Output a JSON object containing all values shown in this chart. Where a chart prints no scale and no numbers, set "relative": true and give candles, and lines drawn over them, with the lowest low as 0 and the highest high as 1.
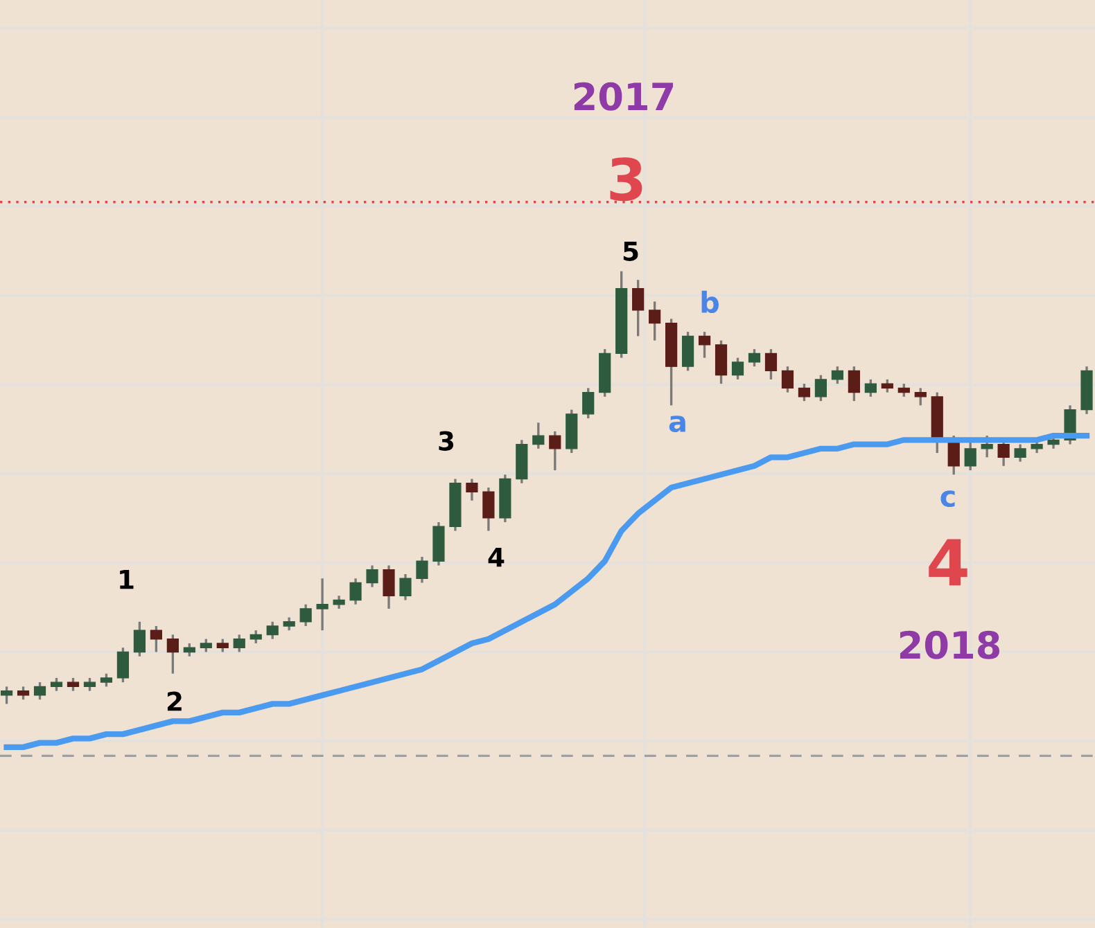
{
  "chart_data": {
    "type": "candlestick",
    "relative": true,
    "grid": true,
    "categories": [
      null,
      null,
      null,
      null,
      null,
      null,
      null,
      null,
      null,
      null,
      null,
      null,
      null,
      null,
      null,
      null,
      null,
      null,
      null,
      null,
      null,
      null,
      null,
      null,
      null,
      null,
      null,
      null,
      null,
      null,
      null,
      null,
      null,
      null,
      null,
      null,
      null,
      null,
      null,
      null,
      null,
      null,
      null,
      null,
      null,
      null,
      null,
      null,
      null,
      null,
      null,
      null,
      null,
      null,
      null,
      null,
      null,
      null,
      null,
      null,
      null,
      null,
      null,
      null,
      null,
      null
    ],
    "ohlc": [
      [
        0.02,
        0.04,
        0.0,
        0.03
      ],
      [
        0.03,
        0.04,
        0.01,
        0.02
      ],
      [
        0.02,
        0.05,
        0.01,
        0.04
      ],
      [
        0.04,
        0.06,
        0.03,
        0.05
      ],
      [
        0.05,
        0.06,
        0.03,
        0.04
      ],
      [
        0.04,
        0.06,
        0.03,
        0.05
      ],
      [
        0.05,
        0.07,
        0.04,
        0.06
      ],
      [
        0.06,
        0.13,
        0.05,
        0.12
      ],
      [
        0.12,
        0.19,
        0.11,
        0.17
      ],
      [
        0.17,
        0.18,
        0.12,
        0.15
      ],
      [
        0.15,
        0.16,
        0.07,
        0.12
      ],
      [
        0.12,
        0.14,
        0.11,
        0.13
      ],
      [
        0.13,
        0.15,
        0.12,
        0.14
      ],
      [
        0.14,
        0.15,
        0.12,
        0.13
      ],
      [
        0.13,
        0.16,
        0.12,
        0.15
      ],
      [
        0.15,
        0.17,
        0.14,
        0.16
      ],
      [
        0.16,
        0.19,
        0.15,
        0.18
      ],
      [
        0.18,
        0.2,
        0.17,
        0.19
      ],
      [
        0.19,
        0.23,
        0.18,
        0.22
      ],
      [
        0.22,
        0.29,
        0.17,
        0.23
      ],
      [
        0.23,
        0.25,
        0.22,
        0.24
      ],
      [
        0.24,
        0.29,
        0.23,
        0.28
      ],
      [
        0.28,
        0.32,
        0.27,
        0.31
      ],
      [
        0.31,
        0.32,
        0.22,
        0.25
      ],
      [
        0.25,
        0.3,
        0.24,
        0.29
      ],
      [
        0.29,
        0.34,
        0.28,
        0.33
      ],
      [
        0.33,
        0.42,
        0.32,
        0.41
      ],
      [
        0.41,
        0.52,
        0.4,
        0.51
      ],
      [
        0.51,
        0.52,
        0.47,
        0.49
      ],
      [
        0.49,
        0.5,
        0.4,
        0.43
      ],
      [
        0.43,
        0.53,
        0.42,
        0.52
      ],
      [
        0.52,
        0.61,
        0.51,
        0.6
      ],
      [
        0.6,
        0.65,
        0.59,
        0.62
      ],
      [
        0.62,
        0.63,
        0.54,
        0.59
      ],
      [
        0.59,
        0.68,
        0.58,
        0.67
      ],
      [
        0.67,
        0.73,
        0.66,
        0.72
      ],
      [
        0.72,
        0.82,
        0.71,
        0.81
      ],
      [
        0.81,
        1.0,
        0.8,
        0.96
      ],
      [
        0.96,
        0.98,
        0.85,
        0.91
      ],
      [
        0.91,
        0.93,
        0.84,
        0.88
      ],
      [
        0.88,
        0.89,
        0.69,
        0.78
      ],
      [
        0.78,
        0.86,
        0.77,
        0.85
      ],
      [
        0.85,
        0.86,
        0.8,
        0.83
      ],
      [
        0.83,
        0.84,
        0.74,
        0.76
      ],
      [
        0.76,
        0.8,
        0.75,
        0.79
      ],
      [
        0.79,
        0.82,
        0.78,
        0.81
      ],
      [
        0.81,
        0.82,
        0.75,
        0.77
      ],
      [
        0.77,
        0.78,
        0.72,
        0.73
      ],
      [
        0.73,
        0.74,
        0.7,
        0.71
      ],
      [
        0.71,
        0.76,
        0.7,
        0.75
      ],
      [
        0.75,
        0.78,
        0.74,
        0.77
      ],
      [
        0.77,
        0.78,
        0.7,
        0.72
      ],
      [
        0.72,
        0.75,
        0.71,
        0.74
      ],
      [
        0.74,
        0.75,
        0.72,
        0.73
      ],
      [
        0.73,
        0.74,
        0.71,
        0.72
      ],
      [
        0.72,
        0.73,
        0.69,
        0.71
      ],
      [
        0.71,
        0.72,
        0.58,
        0.61
      ],
      [
        0.61,
        0.62,
        0.53,
        0.55
      ],
      [
        0.55,
        0.61,
        0.54,
        0.59
      ],
      [
        0.59,
        0.62,
        0.57,
        0.6
      ],
      [
        0.6,
        0.61,
        0.55,
        0.57
      ],
      [
        0.57,
        0.6,
        0.56,
        0.59
      ],
      [
        0.59,
        0.61,
        0.58,
        0.6
      ],
      [
        0.6,
        0.62,
        0.59,
        0.61
      ],
      [
        0.61,
        0.69,
        0.6,
        0.68
      ],
      [
        0.68,
        0.78,
        0.67,
        0.77
      ]
    ],
    "colors": [
      "#2e5b3e",
      "#5a1d17",
      "#2e5b3e",
      "#2e5b3e",
      "#5a1d17",
      "#2e5b3e",
      "#2e5b3e",
      "#2e5b3e",
      "#2e5b3e",
      "#5a1d17",
      "#5a1d17",
      "#2e5b3e",
      "#2e5b3e",
      "#5a1d17",
      "#2e5b3e",
      "#2e5b3e",
      "#2e5b3e",
      "#2e5b3e",
      "#2e5b3e",
      "#2e5b3e",
      "#2e5b3e",
      "#2e5b3e",
      "#2e5b3e",
      "#5a1d17",
      "#2e5b3e",
      "#2e5b3e",
      "#2e5b3e",
      "#2e5b3e",
      "#5a1d17",
      "#5a1d17",
      "#2e5b3e",
      "#2e5b3e",
      "#2e5b3e",
      "#5a1d17",
      "#2e5b3e",
      "#2e5b3e",
      "#2e5b3e",
      "#2e5b3e",
      "#5a1d17",
      "#5a1d17",
      "#5a1d17",
      "#2e5b3e",
      "#5a1d17",
      "#5a1d17",
      "#2e5b3e",
      "#2e5b3e",
      "#5a1d17",
      "#5a1d17",
      "#5a1d17",
      "#2e5b3e",
      "#2e5b3e",
      "#5a1d17",
      "#2e5b3e",
      "#5a1d17",
      "#5a1d17",
      "#5a1d17",
      "#5a1d17",
      "#5a1d17",
      "#2e5b3e",
      "#2e5b3e",
      "#5a1d17",
      "#2e5b3e",
      "#2e5b3e",
      "#2e5b3e",
      "#2e5b3e",
      "#2e5b3e"
    ],
    "series": [
      {
        "type": "line",
        "color": "#4a9af0",
        "values": [
          -0.1,
          -0.1,
          -0.09,
          -0.09,
          -0.08,
          -0.08,
          -0.07,
          -0.07,
          -0.06,
          -0.05,
          -0.04,
          -0.04,
          -0.03,
          -0.02,
          -0.02,
          -0.01,
          0.0,
          0.0,
          0.01,
          0.02,
          0.03,
          0.04,
          0.05,
          0.06,
          0.07,
          0.08,
          0.1,
          0.12,
          0.14,
          0.15,
          0.17,
          0.19,
          0.21,
          0.23,
          0.26,
          0.29,
          0.33,
          0.4,
          0.44,
          0.47,
          0.5,
          0.51,
          0.52,
          0.53,
          0.54,
          0.55,
          0.57,
          0.57,
          0.58,
          0.59,
          0.59,
          0.6,
          0.6,
          0.6,
          0.61,
          0.61,
          0.61,
          0.61,
          0.61,
          0.61,
          0.61,
          0.61,
          0.61,
          0.62,
          0.62,
          0.62
        ]
      }
    ],
    "ref_lines": [
      {
        "axis": "y",
        "value": 1.16,
        "color": "#e0464e",
        "line_style": "dotted"
      },
      {
        "axis": "y",
        "value": -0.12,
        "color": "#a0a0a0",
        "line_style": "dashed"
      }
    ],
    "annotations": [
      "2017",
      "3",
      "5",
      "b",
      "a",
      "3",
      "4",
      "1",
      "2",
      "c",
      "4",
      "2018"
    ]
  }
}
